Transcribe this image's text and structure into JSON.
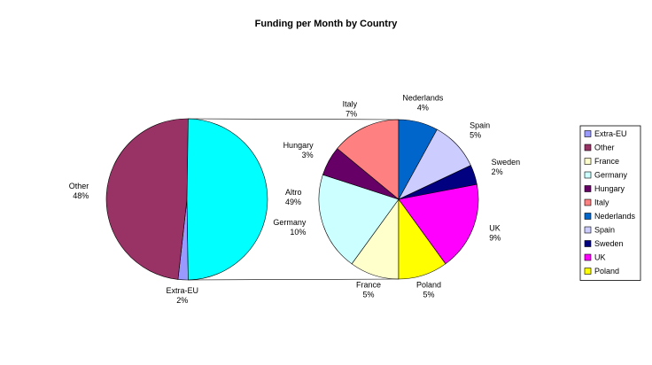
{
  "chart_data": {
    "type": "pie-of-pie",
    "title": "Funding per Month by Country",
    "categories": [
      "Extra-EU",
      "Other",
      "France",
      "Germany",
      "Hungary",
      "Italy",
      "Nederlands",
      "Spain",
      "Sweden",
      "UK",
      "Poland"
    ],
    "values": [
      2,
      48,
      5,
      10,
      3,
      7,
      4,
      5,
      2,
      9,
      5
    ],
    "value_labels": [
      "2%",
      "48%",
      "5%",
      "10%",
      "3%",
      "7%",
      "4%",
      "5%",
      "2%",
      "9%",
      "5%"
    ],
    "colors": [
      "#9999ff",
      "#993366",
      "#ffffcc",
      "#ccffff",
      "#660066",
      "#ff8080",
      "#0066cc",
      "#ccccff",
      "#000080",
      "#ff00ff",
      "#ffff00"
    ],
    "second_plot_count": 9,
    "composite": {
      "name": "Altro",
      "value": 49,
      "value_label": "49%",
      "color": "#00ffff"
    },
    "legend": "right"
  }
}
